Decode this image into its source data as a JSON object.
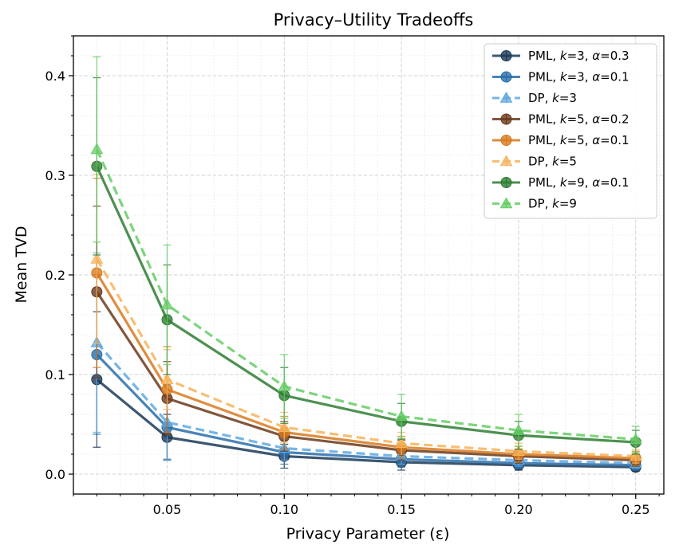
{
  "chart_data": {
    "type": "line",
    "title": "Privacy–Utility Tradeoffs",
    "xlabel": "Privacy Parameter (ε)",
    "ylabel": "Mean TVD",
    "x": [
      0.02,
      0.05,
      0.1,
      0.15,
      0.2,
      0.25
    ],
    "xlim": [
      0.01,
      0.262
    ],
    "ylim": [
      -0.02,
      0.44
    ],
    "xticks": [
      0.05,
      0.1,
      0.15,
      0.2,
      0.25
    ],
    "xtick_labels": [
      "0.05",
      "0.10",
      "0.15",
      "0.20",
      "0.25"
    ],
    "yticks": [
      0.0,
      0.1,
      0.2,
      0.3,
      0.4
    ],
    "ytick_labels": [
      "0.0",
      "0.1",
      "0.2",
      "0.3",
      "0.4"
    ],
    "grid": true,
    "legend_position": "top-right",
    "series": [
      {
        "name": "PML, k=3, α=0.3",
        "label_parts": [
          "PML, ",
          "k",
          "=3, ",
          "α",
          "=0.3"
        ],
        "color": "#1b3a57",
        "marker": "circle",
        "dashed": false,
        "values": [
          0.095,
          0.037,
          0.018,
          0.012,
          0.009,
          0.007
        ],
        "errors": [
          0.068,
          0.023,
          0.012,
          0.008,
          0.005,
          0.004
        ]
      },
      {
        "name": "PML, k=3, α=0.1",
        "label_parts": [
          "PML, ",
          "k",
          "=3, ",
          "α",
          "=0.1"
        ],
        "color": "#2a6faa",
        "marker": "circle",
        "dashed": false,
        "values": [
          0.12,
          0.047,
          0.022,
          0.015,
          0.011,
          0.009
        ],
        "errors": [
          0.08,
          0.032,
          0.012,
          0.008,
          0.005,
          0.004
        ]
      },
      {
        "name": "DP, k=3",
        "label_parts": [
          "DP, ",
          "k",
          "=3"
        ],
        "color": "#5fa8df",
        "marker": "triangle",
        "dashed": true,
        "values": [
          0.132,
          0.052,
          0.026,
          0.018,
          0.014,
          0.011
        ],
        "errors": [
          0.09,
          0.038,
          0.012,
          0.008,
          0.006,
          0.005
        ]
      },
      {
        "name": "PML, k=5, α=0.2",
        "label_parts": [
          "PML, ",
          "k",
          "=5, ",
          "α",
          "=0.2"
        ],
        "color": "#6b3a1b",
        "marker": "circle",
        "dashed": false,
        "values": [
          0.183,
          0.076,
          0.038,
          0.024,
          0.018,
          0.014
        ],
        "errors": [
          0.086,
          0.037,
          0.015,
          0.01,
          0.007,
          0.006
        ]
      },
      {
        "name": "PML, k=5, α=0.1",
        "label_parts": [
          "PML, ",
          "k",
          "=5, ",
          "α",
          "=0.1"
        ],
        "color": "#d87a1e",
        "marker": "circle",
        "dashed": false,
        "values": [
          0.202,
          0.085,
          0.042,
          0.027,
          0.02,
          0.016
        ],
        "errors": [
          0.095,
          0.043,
          0.016,
          0.011,
          0.008,
          0.007
        ]
      },
      {
        "name": "DP, k=5",
        "label_parts": [
          "DP, ",
          "k",
          "=5"
        ],
        "color": "#f7b35c",
        "marker": "triangle",
        "dashed": true,
        "values": [
          0.216,
          0.095,
          0.047,
          0.031,
          0.023,
          0.018
        ],
        "errors": [
          0.085,
          0.03,
          0.015,
          0.011,
          0.008,
          0.007
        ]
      },
      {
        "name": "PML, k=9, α=0.1",
        "label_parts": [
          "PML, ",
          "k",
          "=9, ",
          "α",
          "=0.1"
        ],
        "color": "#2e7d32",
        "marker": "circle",
        "dashed": false,
        "values": [
          0.309,
          0.155,
          0.079,
          0.053,
          0.039,
          0.032
        ],
        "errors": [
          0.089,
          0.055,
          0.028,
          0.018,
          0.014,
          0.012
        ]
      },
      {
        "name": "DP, k=9",
        "label_parts": [
          "DP, ",
          "k",
          "=9"
        ],
        "color": "#66cc66",
        "marker": "triangle",
        "dashed": true,
        "values": [
          0.326,
          0.17,
          0.088,
          0.058,
          0.044,
          0.035
        ],
        "errors": [
          0.093,
          0.06,
          0.032,
          0.022,
          0.016,
          0.013
        ]
      }
    ]
  }
}
